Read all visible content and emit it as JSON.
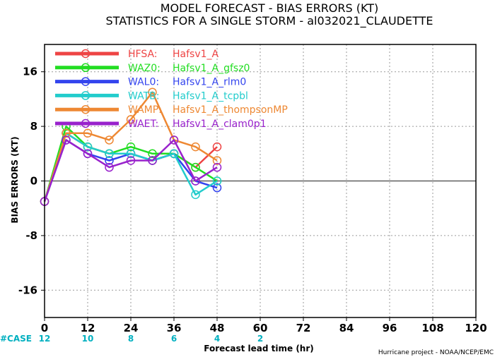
{
  "chart_data": {
    "type": "line",
    "title": "MODEL FORECAST - BIAS ERRORS (KT)",
    "subtitle": "STATISTICS FOR A SINGLE STORM - al032021_CLAUDETTE",
    "xlabel": "Forecast lead time (hr)",
    "ylabel": "BIAS ERRORS (KT)",
    "xlim": [
      0,
      120
    ],
    "ylim": [
      -20,
      20
    ],
    "x_ticks": [
      "0",
      "12",
      "24",
      "36",
      "48",
      "60",
      "72",
      "84",
      "96",
      "108",
      "120"
    ],
    "y_ticks": [
      "16",
      "8",
      "0",
      "-8",
      "-16"
    ],
    "grid": true,
    "legend_position": "top-left",
    "x": [
      0,
      6,
      12,
      18,
      24,
      30,
      36,
      42,
      48
    ],
    "series": [
      {
        "label": "HFSA:",
        "desc": "Hafsv1_A",
        "color": "#ee4444",
        "values": [
          -3,
          7,
          5,
          4,
          4,
          3,
          4,
          2,
          5
        ]
      },
      {
        "label": "WAZ0:",
        "desc": "Hafsv1_A_gfsz0",
        "color": "#22dd22",
        "values": [
          -3,
          8,
          5,
          4,
          5,
          4,
          4,
          2,
          0
        ]
      },
      {
        "label": "WAL0:",
        "desc": "Hafsv1_A_rlm0",
        "color": "#3344ee",
        "values": [
          -3,
          6,
          4,
          3,
          4,
          3,
          4,
          0,
          -1
        ]
      },
      {
        "label": "WATB:",
        "desc": "Hafsv1_A_tcpbl",
        "color": "#22cccc",
        "values": [
          -3,
          7,
          5,
          4,
          4,
          3,
          4,
          -2,
          0
        ]
      },
      {
        "label": "WAMP:",
        "desc": "Hafsv1_A_thompsonMP",
        "color": "#ee8833",
        "values": [
          -3,
          7,
          7,
          6,
          9,
          13,
          6,
          5,
          3
        ]
      },
      {
        "label": "WAET:",
        "desc": "Hafsv1_A_clam0p1",
        "color": "#9922cc",
        "values": [
          -3,
          6,
          4,
          2,
          3,
          3,
          6,
          0,
          2
        ]
      }
    ],
    "cases": {
      "label": "#CASE",
      "x": [
        0,
        12,
        24,
        36,
        48,
        60
      ],
      "values": [
        "12",
        "10",
        "8",
        "6",
        "4",
        "2"
      ],
      "color": "#00b0c0"
    },
    "credit": "Hurricane project - NOAA/NCEP/EMC"
  }
}
